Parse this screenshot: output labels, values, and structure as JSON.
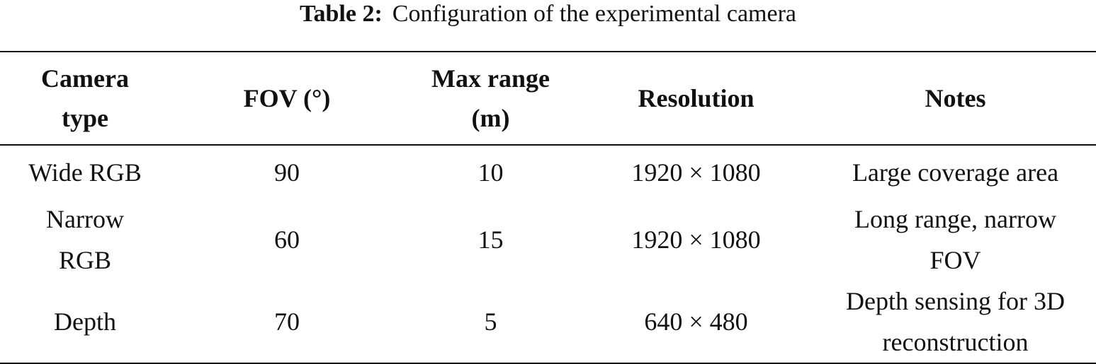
{
  "caption": {
    "label": "Table 2:",
    "text": "Configuration of the experimental camera"
  },
  "table": {
    "headers": [
      [
        "Camera",
        "type"
      ],
      [
        "FOV (°)"
      ],
      [
        "Max range",
        "(m)"
      ],
      [
        "Resolution"
      ],
      [
        "Notes"
      ]
    ],
    "rows": [
      {
        "camera_type": [
          "Wide RGB"
        ],
        "fov": "90",
        "max_range": "10",
        "resolution": "1920 × 1080",
        "notes": [
          "Large coverage area"
        ]
      },
      {
        "camera_type": [
          "Narrow",
          "RGB"
        ],
        "fov": "60",
        "max_range": "15",
        "resolution": "1920 × 1080",
        "notes": [
          "Long range, narrow",
          "FOV"
        ]
      },
      {
        "camera_type": [
          "Depth"
        ],
        "fov": "70",
        "max_range": "5",
        "resolution": "640 × 480",
        "notes": [
          "Depth sensing for 3D",
          "reconstruction"
        ]
      }
    ]
  }
}
